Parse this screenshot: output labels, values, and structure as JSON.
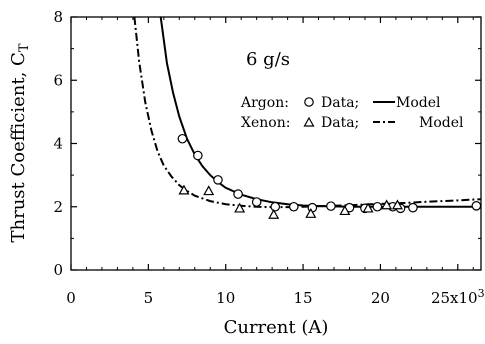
{
  "chart_data": {
    "type": "scatter",
    "xlabel": "Current (A)",
    "ylabel": "Thrust Coefficient, C",
    "ylabel_subscript": "T",
    "xlim": [
      0,
      26500
    ],
    "ylim": [
      0,
      8
    ],
    "x_ticks": [
      0,
      5000,
      10000,
      15000,
      20000,
      25000
    ],
    "x_tick_labels": [
      "0",
      "5",
      "10",
      "15",
      "20",
      "25x10"
    ],
    "x_tick_exponent": "3",
    "y_ticks": [
      0,
      2,
      4,
      6,
      8
    ],
    "y_tick_labels": [
      "0",
      "2",
      "4",
      "6",
      "8"
    ],
    "annotation": "6 g/s",
    "legend": {
      "argon_label": "Argon:",
      "xenon_label": "Xenon:",
      "data_label": "Data;",
      "model_label": "Model"
    },
    "series": [
      {
        "name": "Argon Data",
        "kind": "points",
        "marker": "circle",
        "points": [
          [
            7200,
            4.15
          ],
          [
            8200,
            3.62
          ],
          [
            9500,
            2.85
          ],
          [
            10800,
            2.4
          ],
          [
            12000,
            2.15
          ],
          [
            13200,
            2.0
          ],
          [
            14400,
            2.0
          ],
          [
            15600,
            1.97
          ],
          [
            16800,
            2.02
          ],
          [
            18000,
            1.97
          ],
          [
            19000,
            1.95
          ],
          [
            19800,
            2.0
          ],
          [
            20800,
            2.0
          ],
          [
            21300,
            1.95
          ],
          [
            22100,
            1.97
          ],
          [
            26200,
            2.03
          ]
        ]
      },
      {
        "name": "Xenon Data",
        "kind": "points",
        "marker": "triangle",
        "points": [
          [
            7300,
            2.52
          ],
          [
            8900,
            2.5
          ],
          [
            10900,
            1.95
          ],
          [
            13100,
            1.75
          ],
          [
            15500,
            1.78
          ],
          [
            17700,
            1.87
          ],
          [
            19200,
            1.95
          ],
          [
            20400,
            2.05
          ],
          [
            21100,
            2.05
          ]
        ]
      },
      {
        "name": "Argon Model",
        "kind": "line",
        "style": "solid",
        "points": [
          [
            5800,
            8.0
          ],
          [
            6200,
            6.55
          ],
          [
            6600,
            5.6
          ],
          [
            7000,
            4.85
          ],
          [
            7500,
            4.15
          ],
          [
            8000,
            3.65
          ],
          [
            8500,
            3.28
          ],
          [
            9000,
            3.0
          ],
          [
            9500,
            2.78
          ],
          [
            10000,
            2.6
          ],
          [
            11000,
            2.38
          ],
          [
            12000,
            2.24
          ],
          [
            13000,
            2.14
          ],
          [
            14000,
            2.08
          ],
          [
            15000,
            2.04
          ],
          [
            16000,
            2.02
          ],
          [
            17000,
            2.01
          ],
          [
            18000,
            2.0
          ],
          [
            20000,
            2.0
          ],
          [
            22000,
            2.0
          ],
          [
            24000,
            2.0
          ],
          [
            26500,
            2.0
          ]
        ]
      },
      {
        "name": "Xenon Model",
        "kind": "line",
        "style": "dashdot",
        "points": [
          [
            4100,
            8.0
          ],
          [
            4400,
            6.6
          ],
          [
            4800,
            5.3
          ],
          [
            5200,
            4.4
          ],
          [
            5600,
            3.75
          ],
          [
            6000,
            3.3
          ],
          [
            6500,
            2.95
          ],
          [
            7000,
            2.68
          ],
          [
            7500,
            2.5
          ],
          [
            8000,
            2.35
          ],
          [
            9000,
            2.18
          ],
          [
            10000,
            2.08
          ],
          [
            11000,
            2.03
          ],
          [
            12000,
            2.0
          ],
          [
            13000,
            1.99
          ],
          [
            14000,
            1.99
          ],
          [
            15000,
            2.0
          ],
          [
            16000,
            2.02
          ],
          [
            17000,
            2.03
          ],
          [
            18000,
            2.05
          ],
          [
            19000,
            2.07
          ],
          [
            20000,
            2.09
          ],
          [
            21000,
            2.11
          ],
          [
            22000,
            2.13
          ],
          [
            23000,
            2.16
          ],
          [
            24000,
            2.18
          ],
          [
            25000,
            2.2
          ],
          [
            26500,
            2.24
          ]
        ]
      }
    ]
  }
}
